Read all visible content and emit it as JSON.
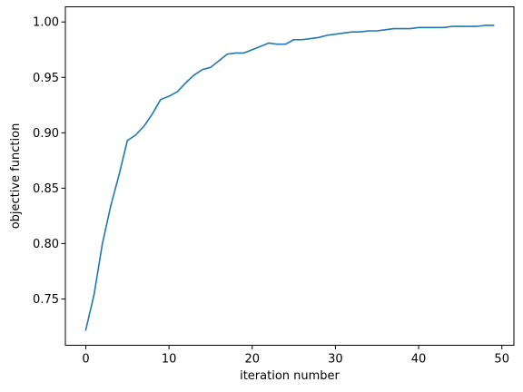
{
  "chart_data": {
    "type": "line",
    "title": "",
    "xlabel": "iteration number",
    "ylabel": "objective function",
    "xlim": [
      -2.45,
      51.45
    ],
    "ylim": [
      0.7082,
      1.0137
    ],
    "xticks": [
      0,
      10,
      20,
      30,
      40,
      50
    ],
    "xtick_labels": [
      "0",
      "10",
      "20",
      "30",
      "40",
      "50"
    ],
    "yticks": [
      0.75,
      0.8,
      0.85,
      0.9,
      0.95,
      1.0
    ],
    "ytick_labels": [
      "0.75",
      "0.80",
      "0.85",
      "0.90",
      "0.95",
      "1.00"
    ],
    "grid": false,
    "legend": "none",
    "series": [
      {
        "color": "#1f77b4",
        "x": [
          0,
          1,
          2,
          3,
          4,
          5,
          6,
          7,
          8,
          9,
          10,
          11,
          12,
          13,
          14,
          15,
          16,
          17,
          18,
          19,
          20,
          21,
          22,
          23,
          24,
          25,
          26,
          27,
          28,
          29,
          30,
          31,
          32,
          33,
          34,
          35,
          36,
          37,
          38,
          39,
          40,
          41,
          42,
          43,
          44,
          45,
          46,
          47,
          48,
          49
        ],
        "y": [
          0.722,
          0.754,
          0.8,
          0.834,
          0.862,
          0.893,
          0.898,
          0.906,
          0.917,
          0.93,
          0.933,
          0.937,
          0.945,
          0.952,
          0.957,
          0.959,
          0.965,
          0.971,
          0.972,
          0.972,
          0.975,
          0.978,
          0.981,
          0.98,
          0.98,
          0.984,
          0.984,
          0.985,
          0.986,
          0.988,
          0.989,
          0.99,
          0.991,
          0.991,
          0.992,
          0.992,
          0.993,
          0.994,
          0.994,
          0.994,
          0.995,
          0.995,
          0.995,
          0.995,
          0.996,
          0.996,
          0.996,
          0.996,
          0.997,
          0.997
        ]
      }
    ]
  }
}
